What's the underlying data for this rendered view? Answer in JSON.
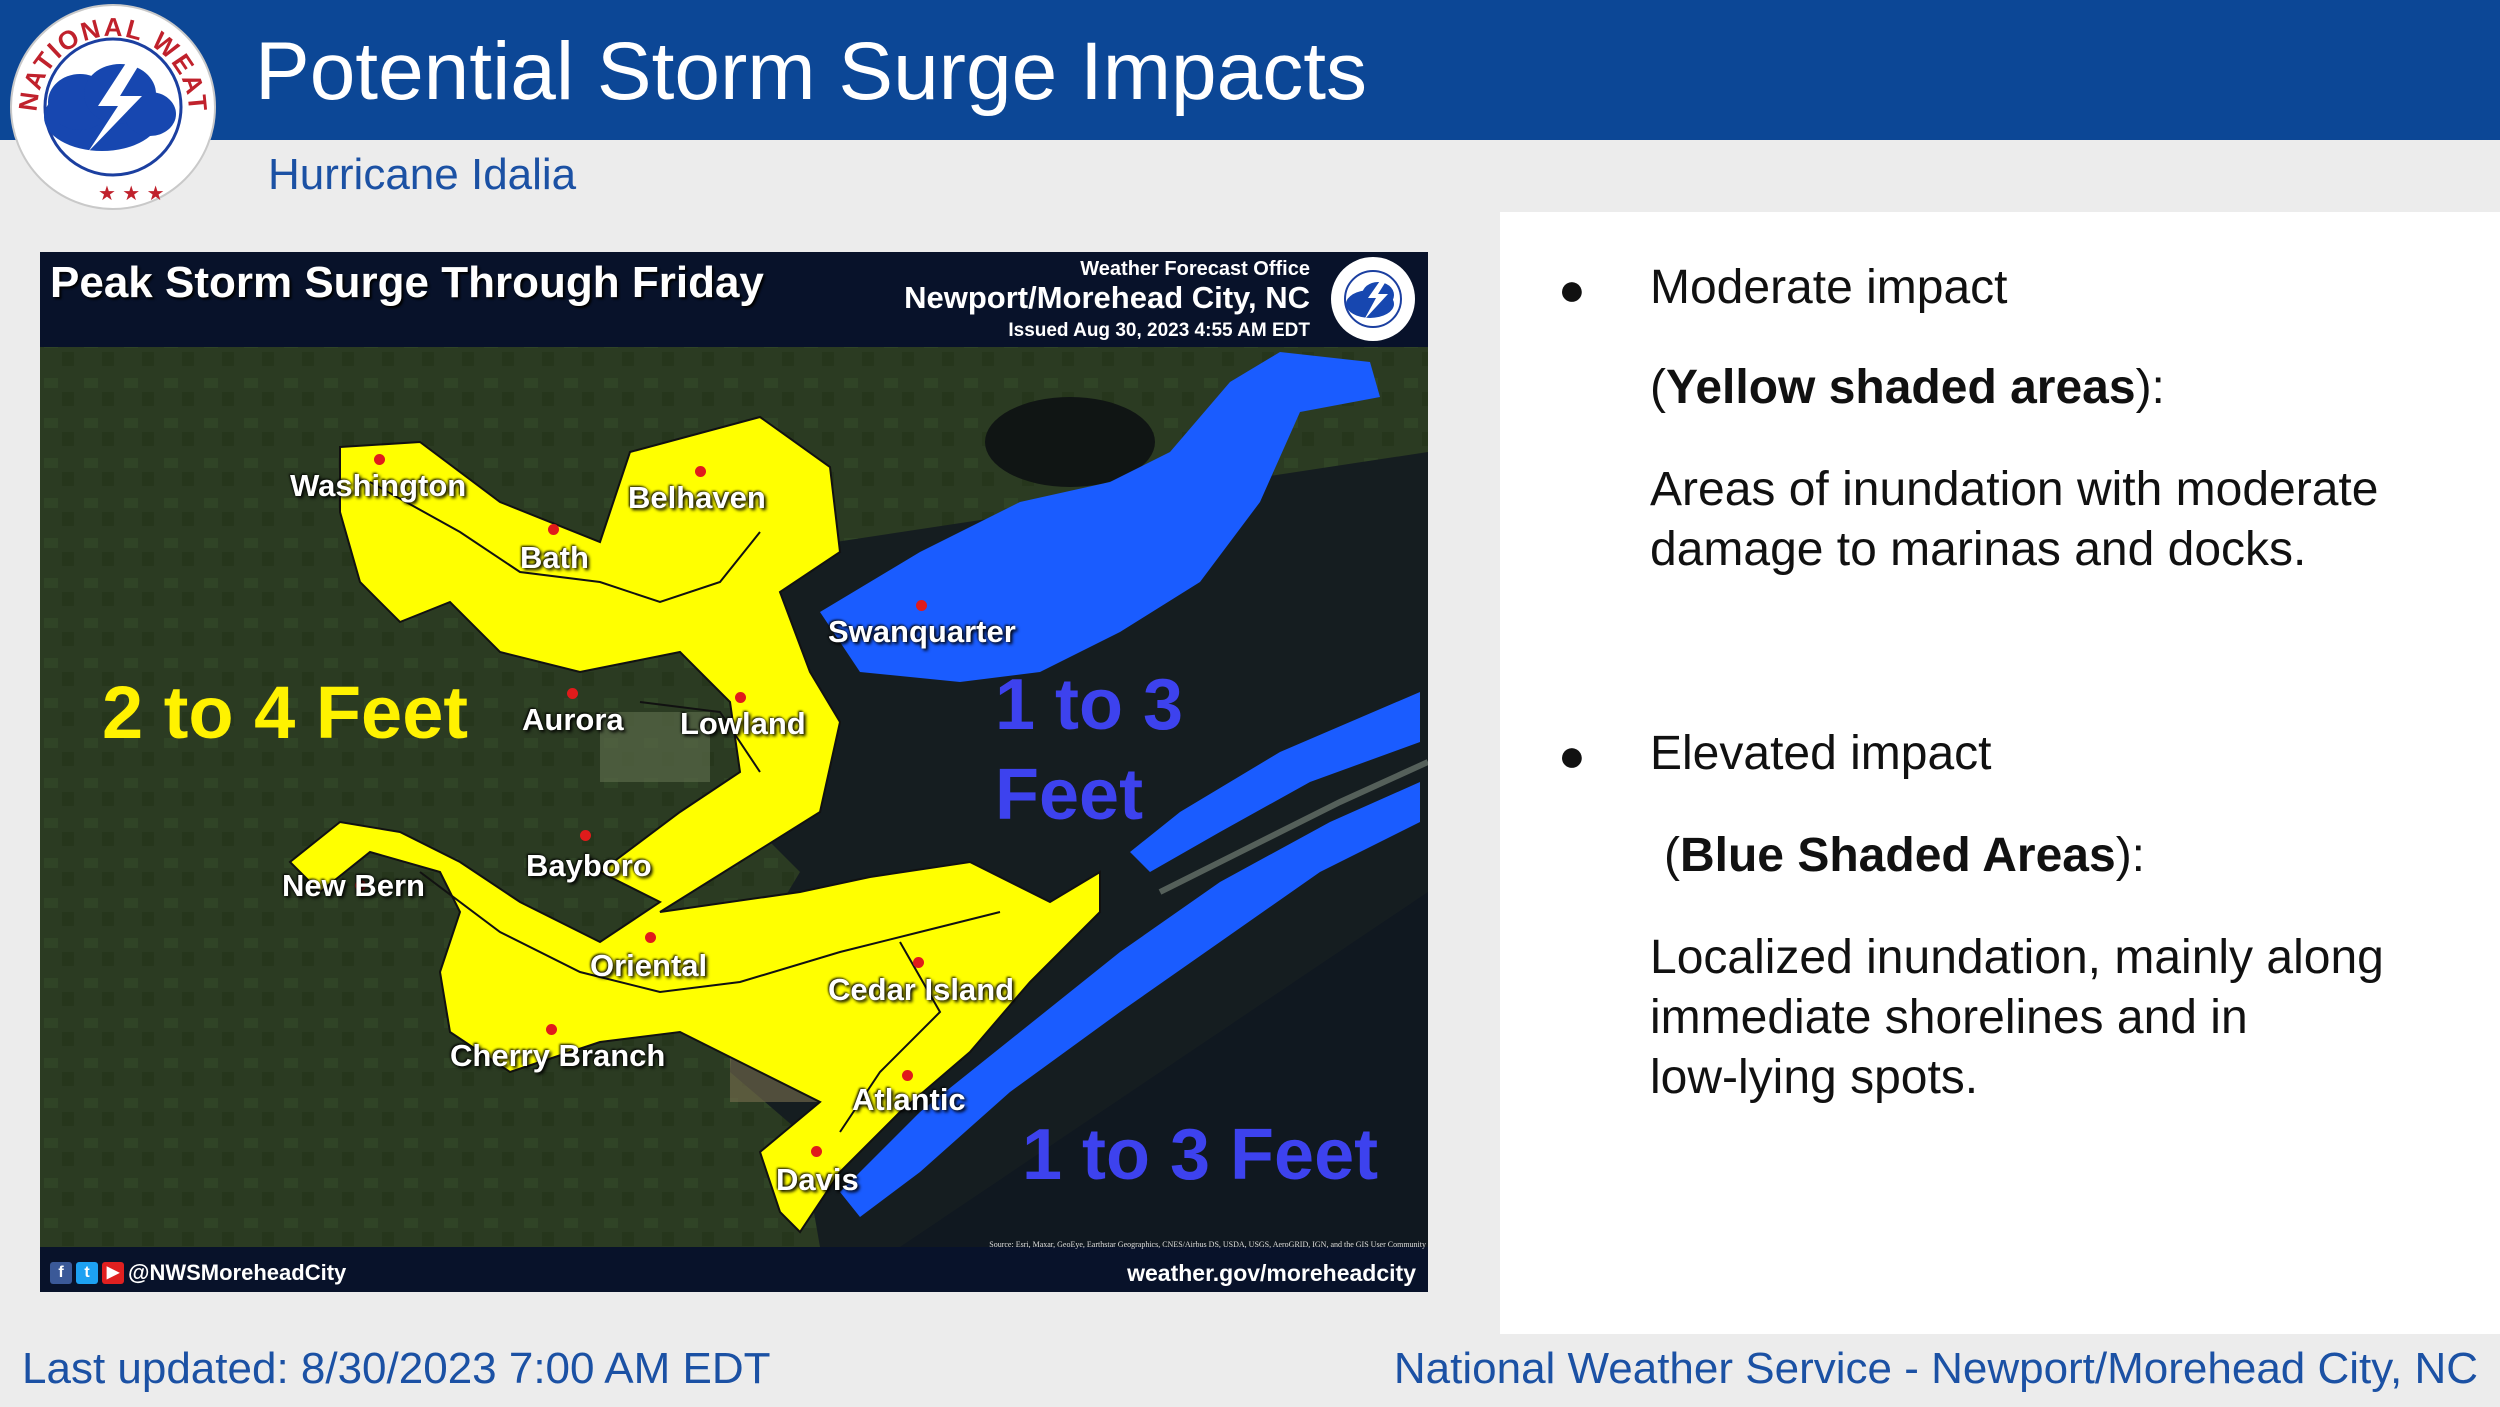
{
  "header": {
    "title": "Potential Storm Surge Impacts",
    "subtitle": "Hurricane Idalia",
    "logo_text": "NATIONAL WEATHER SERVICE"
  },
  "map": {
    "title": "Peak Storm Surge Through Friday",
    "office_name": "Weather Forecast Office",
    "office_city": "Newport/Morehead City, NC",
    "issued": "Issued Aug 30, 2023 4:55 AM EDT",
    "social_handle": "@NWSMoreheadCity",
    "website": "weather.gov/moreheadcity",
    "source": "Source: Esri, Maxar, GeoEye, Earthstar Geographics, CNES/Airbus DS, USDA, USGS, AeroGRID, IGN, and the GIS User Community",
    "zones": {
      "yellow_label": "2 to 4  Feet",
      "blue_label_sound_line1": "1 to 3",
      "blue_label_sound_line2": "Feet",
      "blue_label_ocean": "1 to 3 Feet"
    },
    "towns": [
      "Washington",
      "Belhaven",
      "Bath",
      "Swanquarter",
      "Aurora",
      "Lowland",
      "Bayboro",
      "New Bern",
      "Oriental",
      "Cedar Island",
      "Cherry Branch",
      "Atlantic",
      "Davis"
    ],
    "colors": {
      "yellow_zone": "#ffff00",
      "blue_zone": "#1a5cff",
      "town_dot": "#e01b1b",
      "land": "#2a3a22",
      "water": "#141c1e"
    }
  },
  "panel": {
    "moderate": {
      "heading": "Moderate impact",
      "paren_open": "(",
      "area_label": "Yellow shaded areas",
      "paren_close": "):",
      "desc_line1": "Areas of inundation with moderate",
      "desc_line2": "damage to marinas and docks."
    },
    "elevated": {
      "heading": "Elevated impact",
      "paren_open": "(",
      "area_label": "Blue Shaded Areas",
      "paren_close": "):",
      "desc_line1": "Localized inundation, mainly along",
      "desc_line2": "immediate shorelines and in",
      "desc_line3": "low-lying spots."
    }
  },
  "footer": {
    "last_updated": "Last updated: 8/30/2023 7:00 AM EDT",
    "office": "National Weather Service - Newport/Morehead City, NC"
  },
  "colors": {
    "header_bg": "#0c4796",
    "accent_text": "#1b51a4",
    "page_bg": "#ececec"
  }
}
